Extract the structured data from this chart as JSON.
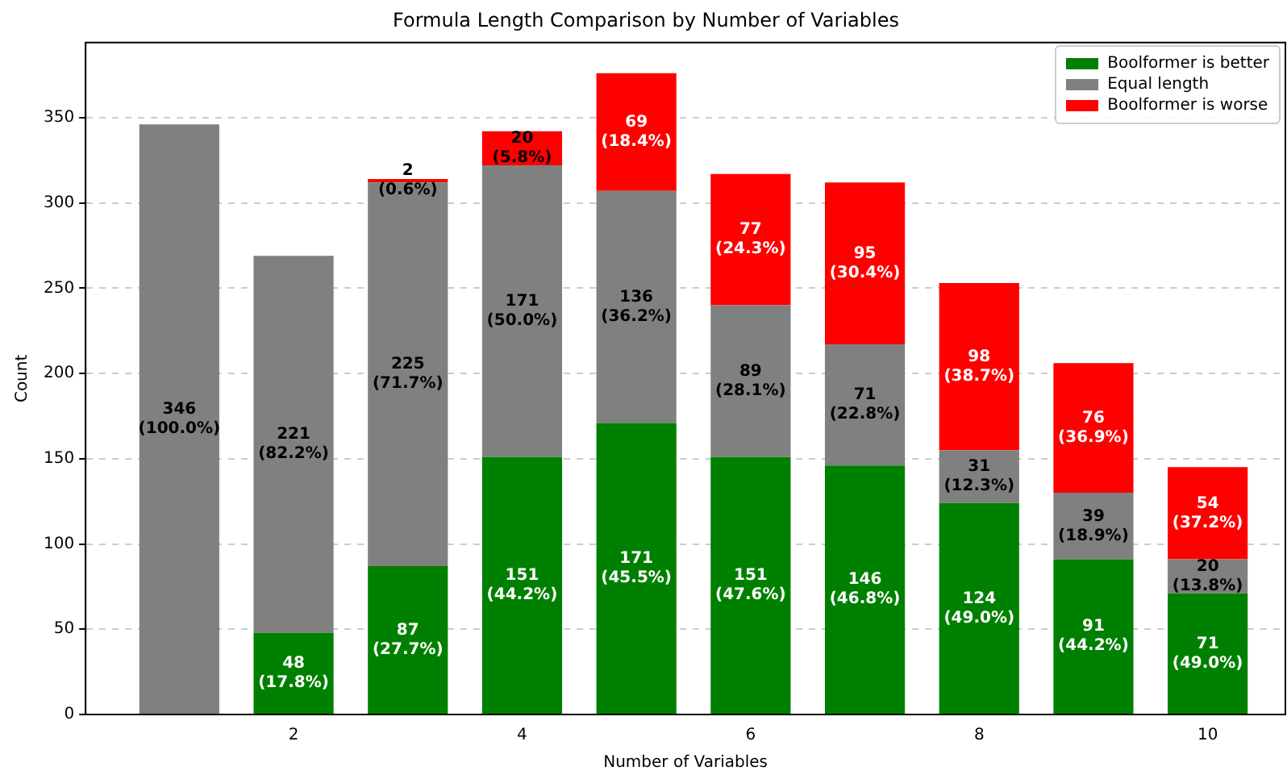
{
  "chart_data": {
    "type": "bar",
    "title": "Formula Length Comparison by Number of Variables",
    "xlabel": "Number of Variables",
    "ylabel": "Count",
    "stacked": true,
    "x": [
      1,
      2,
      3,
      4,
      5,
      6,
      7,
      8,
      9,
      10
    ],
    "xlim": [
      0.18,
      10.68
    ],
    "xticks": [
      2,
      4,
      6,
      8,
      10
    ],
    "ylim": [
      0,
      394
    ],
    "yticks": [
      0,
      50,
      100,
      150,
      200,
      250,
      300,
      350
    ],
    "grid": "y",
    "legend": "top right",
    "series": [
      {
        "name": "Boolformer is better",
        "color": "#008000",
        "values": [
          0,
          48,
          87,
          151,
          171,
          151,
          146,
          124,
          91,
          71
        ],
        "value_labels": [
          null,
          "48\n(17.8%)",
          "87\n(27.7%)",
          "151\n(44.2%)",
          "171\n(45.5%)",
          "151\n(47.6%)",
          "146\n(46.8%)",
          "124\n(49.0%)",
          "91\n(44.2%)",
          "71\n(49.0%)"
        ]
      },
      {
        "name": "Equal length",
        "color": "#808080",
        "values": [
          346,
          221,
          225,
          171,
          136,
          89,
          71,
          31,
          39,
          20
        ],
        "value_labels": [
          "346\n(100.0%)",
          "221\n(82.2%)",
          "225\n(71.7%)",
          "171\n(50.0%)",
          "136\n(36.2%)",
          "89\n(28.1%)",
          "71\n(22.8%)",
          "31\n(12.3%)",
          "39\n(18.9%)",
          "20\n(13.8%)"
        ]
      },
      {
        "name": "Boolformer is worse",
        "color": "#ff0000",
        "values": [
          0,
          0,
          2,
          20,
          69,
          77,
          95,
          98,
          76,
          54
        ],
        "value_labels": [
          null,
          null,
          "2\n(0.6%)",
          "20\n(5.8%)",
          "69\n(18.4%)",
          "77\n(24.3%)",
          "95\n(30.4%)",
          "98\n(38.7%)",
          "76\n(36.9%)",
          "54\n(37.2%)"
        ]
      }
    ]
  }
}
